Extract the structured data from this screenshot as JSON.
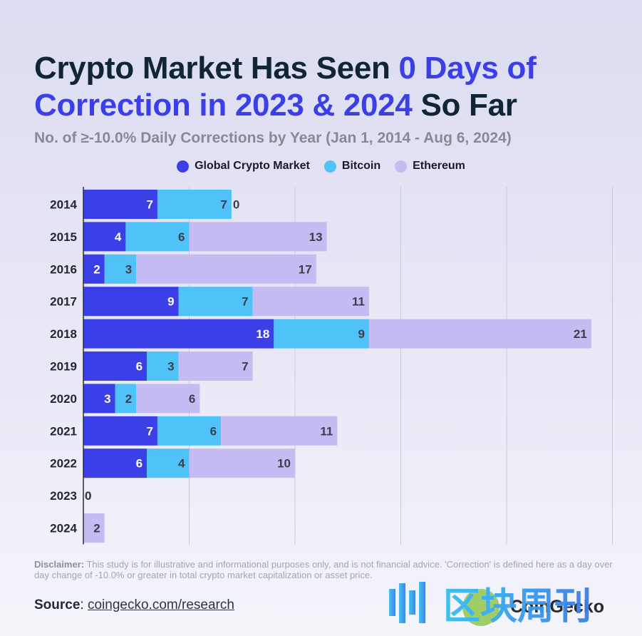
{
  "title": {
    "part1": "Crypto Market Has Seen ",
    "highlight": "0 Days of Correction in 2023 & 2024",
    "part2": " So Far"
  },
  "subtitle": "No. of ≥-10.0% Daily Corrections by Year (Jan 1, 2014 - Aug 6, 2024)",
  "colors": {
    "global": "#3b3fe8",
    "bitcoin": "#4fc3f7",
    "ethereum": "#c6bcf3",
    "title_text": "#102535",
    "highlight": "#3b3fe8"
  },
  "chart_data": {
    "type": "bar",
    "orientation": "horizontal",
    "stacked": true,
    "title": "No. of ≥-10.0% Daily Corrections by Year (Jan 1, 2014 - Aug 6, 2024)",
    "xlabel": "",
    "ylabel": "",
    "xlim": [
      0,
      50
    ],
    "grid": true,
    "legend_position": "top-center",
    "categories": [
      "2014",
      "2015",
      "2016",
      "2017",
      "2018",
      "2019",
      "2020",
      "2021",
      "2022",
      "2023",
      "2024"
    ],
    "series": [
      {
        "name": "Global Crypto Market",
        "color": "#3b3fe8",
        "values": [
          7,
          4,
          2,
          9,
          18,
          6,
          3,
          7,
          6,
          0,
          0
        ]
      },
      {
        "name": "Bitcoin",
        "color": "#4fc3f7",
        "values": [
          7,
          6,
          3,
          7,
          9,
          3,
          2,
          6,
          4,
          0,
          0
        ]
      },
      {
        "name": "Ethereum",
        "color": "#c6bcf3",
        "values": [
          0,
          13,
          17,
          11,
          21,
          7,
          6,
          11,
          10,
          0,
          2
        ]
      }
    ]
  },
  "disclaimer": {
    "label": "Disclaimer:",
    "text": " This study is for illustrative and informational purposes only, and is not financial advice. 'Correction' is defined here as a day over day change of -10.0% or greater in total crypto market capitalization or asset price."
  },
  "source": {
    "label": "Source",
    "separator": ": ",
    "link": "coingecko.com/research"
  },
  "brand": "CoinGecko",
  "watermark": {
    "text": "区块周刊",
    "logo_icon": "blockchain-weekly-logo-icon"
  }
}
